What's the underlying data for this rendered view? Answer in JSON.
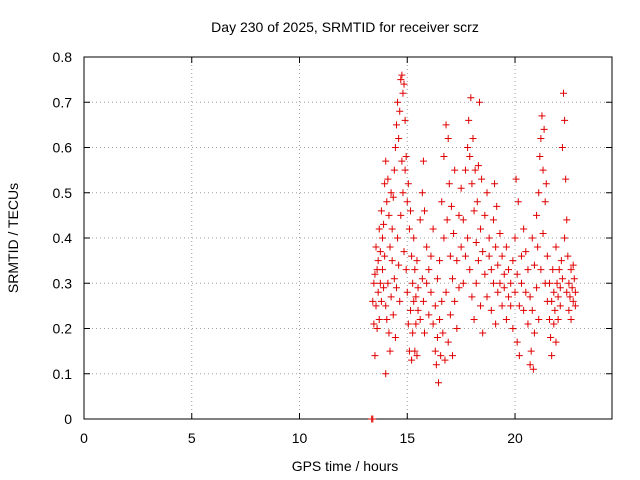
{
  "chart_data": {
    "type": "scatter",
    "title": "Day 230 of 2025, SRMTID for receiver scrz",
    "xlabel": "GPS time / hours",
    "ylabel": "SRMTID / TECUs",
    "xlim": [
      0,
      24.5
    ],
    "ylim": [
      0,
      0.8
    ],
    "x_ticks": [
      0,
      5,
      10,
      15,
      20
    ],
    "y_ticks": [
      0,
      0.1,
      0.2,
      0.3,
      0.4,
      0.5,
      0.6,
      0.7,
      0.8
    ],
    "x_tick_labels": [
      "0",
      "5",
      "10",
      "15",
      "20"
    ],
    "y_tick_labels": [
      "0",
      "0.1",
      "0.2",
      "0.3",
      "0.4",
      "0.5",
      "0.6",
      "0.7",
      "0.8"
    ],
    "grid": true,
    "marker": "plus",
    "color": "#e00000",
    "series": [
      {
        "name": "SRMTID",
        "points": [
          [
            13.35,
            0.0
          ],
          [
            13.4,
            0.0
          ],
          [
            13.4,
            0.26
          ],
          [
            13.45,
            0.21
          ],
          [
            13.45,
            0.3
          ],
          [
            13.5,
            0.14
          ],
          [
            13.5,
            0.32
          ],
          [
            13.55,
            0.25
          ],
          [
            13.55,
            0.38
          ],
          [
            13.6,
            0.2
          ],
          [
            13.6,
            0.33
          ],
          [
            13.65,
            0.28
          ],
          [
            13.65,
            0.35
          ],
          [
            13.7,
            0.22
          ],
          [
            13.7,
            0.42
          ],
          [
            13.75,
            0.3
          ],
          [
            13.75,
            0.37
          ],
          [
            13.8,
            0.26
          ],
          [
            13.8,
            0.46
          ],
          [
            13.85,
            0.33
          ],
          [
            13.85,
            0.4
          ],
          [
            13.9,
            0.43
          ],
          [
            13.9,
            0.29
          ],
          [
            13.95,
            0.52
          ],
          [
            13.95,
            0.36
          ],
          [
            14.0,
            0.57
          ],
          [
            14.0,
            0.25
          ],
          [
            14.0,
            0.1
          ],
          [
            14.05,
            0.48
          ],
          [
            14.05,
            0.22
          ],
          [
            14.1,
            0.53
          ],
          [
            14.1,
            0.3
          ],
          [
            14.15,
            0.45
          ],
          [
            14.15,
            0.19
          ],
          [
            14.2,
            0.38
          ],
          [
            14.2,
            0.15
          ],
          [
            14.25,
            0.5
          ],
          [
            14.25,
            0.27
          ],
          [
            14.3,
            0.35
          ],
          [
            14.3,
            0.42
          ],
          [
            14.35,
            0.49
          ],
          [
            14.35,
            0.23
          ],
          [
            14.4,
            0.31
          ],
          [
            14.4,
            0.55
          ],
          [
            14.45,
            0.6
          ],
          [
            14.45,
            0.18
          ],
          [
            14.5,
            0.65
          ],
          [
            14.5,
            0.29
          ],
          [
            14.55,
            0.7
          ],
          [
            14.55,
            0.4
          ],
          [
            14.6,
            0.62
          ],
          [
            14.6,
            0.34
          ],
          [
            14.65,
            0.68
          ],
          [
            14.65,
            0.26
          ],
          [
            14.7,
            0.75
          ],
          [
            14.7,
            0.45
          ],
          [
            14.75,
            0.76
          ],
          [
            14.75,
            0.57
          ],
          [
            14.8,
            0.72
          ],
          [
            14.8,
            0.5
          ],
          [
            14.85,
            0.74
          ],
          [
            14.85,
            0.37
          ],
          [
            14.9,
            0.66
          ],
          [
            14.9,
            0.55
          ],
          [
            14.95,
            0.58
          ],
          [
            14.95,
            0.33
          ],
          [
            15.0,
            0.48
          ],
          [
            15.0,
            0.28
          ],
          [
            15.05,
            0.52
          ],
          [
            15.05,
            0.21
          ],
          [
            15.1,
            0.42
          ],
          [
            15.1,
            0.15
          ],
          [
            15.15,
            0.46
          ],
          [
            15.15,
            0.24
          ],
          [
            15.2,
            0.36
          ],
          [
            15.2,
            0.13
          ],
          [
            15.25,
            0.3
          ],
          [
            15.25,
            0.19
          ],
          [
            15.3,
            0.4
          ],
          [
            15.3,
            0.26
          ],
          [
            15.35,
            0.33
          ],
          [
            15.35,
            0.15
          ],
          [
            15.4,
            0.27
          ],
          [
            15.4,
            0.21
          ],
          [
            15.45,
            0.35
          ],
          [
            15.45,
            0.14
          ],
          [
            15.5,
            0.29
          ],
          [
            15.5,
            0.24
          ],
          [
            15.6,
            0.44
          ],
          [
            15.6,
            0.22
          ],
          [
            15.7,
            0.5
          ],
          [
            15.7,
            0.31
          ],
          [
            15.75,
            0.57
          ],
          [
            15.75,
            0.26
          ],
          [
            15.8,
            0.46
          ],
          [
            15.8,
            0.19
          ],
          [
            15.9,
            0.38
          ],
          [
            15.9,
            0.3
          ],
          [
            16.0,
            0.33
          ],
          [
            16.0,
            0.23
          ],
          [
            16.1,
            0.28
          ],
          [
            16.1,
            0.36
          ],
          [
            16.2,
            0.42
          ],
          [
            16.2,
            0.21
          ],
          [
            16.3,
            0.25
          ],
          [
            16.3,
            0.15
          ],
          [
            16.35,
            0.12
          ],
          [
            16.4,
            0.18
          ],
          [
            16.4,
            0.31
          ],
          [
            16.45,
            0.08
          ],
          [
            16.5,
            0.22
          ],
          [
            16.5,
            0.35
          ],
          [
            16.55,
            0.14
          ],
          [
            16.6,
            0.26
          ],
          [
            16.6,
            0.48
          ],
          [
            16.65,
            0.19
          ],
          [
            16.7,
            0.4
          ],
          [
            16.7,
            0.58
          ],
          [
            16.75,
            0.13
          ],
          [
            16.8,
            0.28
          ],
          [
            16.8,
            0.65
          ],
          [
            16.85,
            0.44
          ],
          [
            16.9,
            0.62
          ],
          [
            16.9,
            0.17
          ],
          [
            16.95,
            0.52
          ],
          [
            17.0,
            0.36
          ],
          [
            17.0,
            0.23
          ],
          [
            17.05,
            0.47
          ],
          [
            17.1,
            0.31
          ],
          [
            17.1,
            0.14
          ],
          [
            17.15,
            0.41
          ],
          [
            17.2,
            0.26
          ],
          [
            17.2,
            0.55
          ],
          [
            17.3,
            0.35
          ],
          [
            17.3,
            0.2
          ],
          [
            17.4,
            0.45
          ],
          [
            17.4,
            0.29
          ],
          [
            17.5,
            0.51
          ],
          [
            17.5,
            0.38
          ],
          [
            17.6,
            0.3
          ],
          [
            17.6,
            0.44
          ],
          [
            17.7,
            0.36
          ],
          [
            17.7,
            0.55
          ],
          [
            17.8,
            0.6
          ],
          [
            17.8,
            0.4
          ],
          [
            17.85,
            0.66
          ],
          [
            17.9,
            0.58
          ],
          [
            17.9,
            0.33
          ],
          [
            17.95,
            0.71
          ],
          [
            18.0,
            0.52
          ],
          [
            18.0,
            0.27
          ],
          [
            18.05,
            0.62
          ],
          [
            18.1,
            0.46
          ],
          [
            18.1,
            0.22
          ],
          [
            18.15,
            0.55
          ],
          [
            18.2,
            0.39
          ],
          [
            18.2,
            0.3
          ],
          [
            18.25,
            0.48
          ],
          [
            18.3,
            0.35
          ],
          [
            18.3,
            0.56
          ],
          [
            18.35,
            0.7
          ],
          [
            18.4,
            0.42
          ],
          [
            18.4,
            0.25
          ],
          [
            18.45,
            0.53
          ],
          [
            18.5,
            0.37
          ],
          [
            18.5,
            0.19
          ],
          [
            18.6,
            0.45
          ],
          [
            18.6,
            0.32
          ],
          [
            18.7,
            0.5
          ],
          [
            18.7,
            0.27
          ],
          [
            18.8,
            0.4
          ],
          [
            18.8,
            0.36
          ],
          [
            18.9,
            0.33
          ],
          [
            18.9,
            0.24
          ],
          [
            19.0,
            0.44
          ],
          [
            19.0,
            0.3
          ],
          [
            19.05,
            0.52
          ],
          [
            19.1,
            0.38
          ],
          [
            19.1,
            0.21
          ],
          [
            19.15,
            0.47
          ],
          [
            19.2,
            0.34
          ],
          [
            19.2,
            0.28
          ],
          [
            19.3,
            0.41
          ],
          [
            19.3,
            0.3
          ],
          [
            19.4,
            0.36
          ],
          [
            19.4,
            0.25
          ],
          [
            19.5,
            0.32
          ],
          [
            19.5,
            0.29
          ],
          [
            19.6,
            0.38
          ],
          [
            19.6,
            0.22
          ],
          [
            19.7,
            0.33
          ],
          [
            19.7,
            0.27
          ],
          [
            19.8,
            0.3
          ],
          [
            19.8,
            0.25
          ],
          [
            19.9,
            0.35
          ],
          [
            19.9,
            0.2
          ],
          [
            20.0,
            0.28
          ],
          [
            20.0,
            0.4
          ],
          [
            20.05,
            0.53
          ],
          [
            20.1,
            0.17
          ],
          [
            20.1,
            0.32
          ],
          [
            20.15,
            0.48
          ],
          [
            20.2,
            0.25
          ],
          [
            20.2,
            0.14
          ],
          [
            20.3,
            0.36
          ],
          [
            20.3,
            0.3
          ],
          [
            20.4,
            0.42
          ],
          [
            20.4,
            0.24
          ],
          [
            20.5,
            0.28
          ],
          [
            20.5,
            0.37
          ],
          [
            20.6,
            0.33
          ],
          [
            20.6,
            0.21
          ],
          [
            20.7,
            0.27
          ],
          [
            20.7,
            0.12
          ],
          [
            20.75,
            0.15
          ],
          [
            20.8,
            0.4
          ],
          [
            20.8,
            0.24
          ],
          [
            20.85,
            0.11
          ],
          [
            20.9,
            0.34
          ],
          [
            20.9,
            0.19
          ],
          [
            21.0,
            0.29
          ],
          [
            21.0,
            0.45
          ],
          [
            21.05,
            0.38
          ],
          [
            21.1,
            0.22
          ],
          [
            21.1,
            0.5
          ],
          [
            21.15,
            0.58
          ],
          [
            21.2,
            0.33
          ],
          [
            21.2,
            0.62
          ],
          [
            21.25,
            0.67
          ],
          [
            21.3,
            0.41
          ],
          [
            21.3,
            0.55
          ],
          [
            21.35,
            0.64
          ],
          [
            21.4,
            0.48
          ],
          [
            21.4,
            0.3
          ],
          [
            21.45,
            0.52
          ],
          [
            21.5,
            0.36
          ],
          [
            21.5,
            0.26
          ],
          [
            21.6,
            0.3
          ],
          [
            21.6,
            0.22
          ],
          [
            21.65,
            0.18
          ],
          [
            21.7,
            0.26
          ],
          [
            21.7,
            0.14
          ],
          [
            21.75,
            0.33
          ],
          [
            21.8,
            0.21
          ],
          [
            21.8,
            0.28
          ],
          [
            21.85,
            0.24
          ],
          [
            21.9,
            0.38
          ],
          [
            21.9,
            0.17
          ],
          [
            21.95,
            0.3
          ],
          [
            22.0,
            0.27
          ],
          [
            22.0,
            0.22
          ],
          [
            22.05,
            0.33
          ],
          [
            22.1,
            0.29
          ],
          [
            22.1,
            0.25
          ],
          [
            22.15,
            0.35
          ],
          [
            22.2,
            0.31
          ],
          [
            22.2,
            0.6
          ],
          [
            22.25,
            0.72
          ],
          [
            22.3,
            0.66
          ],
          [
            22.3,
            0.4
          ],
          [
            22.35,
            0.53
          ],
          [
            22.4,
            0.44
          ],
          [
            22.4,
            0.28
          ],
          [
            22.45,
            0.36
          ],
          [
            22.5,
            0.3
          ],
          [
            22.5,
            0.24
          ],
          [
            22.55,
            0.27
          ],
          [
            22.6,
            0.33
          ],
          [
            22.6,
            0.22
          ],
          [
            22.65,
            0.29
          ],
          [
            22.7,
            0.26
          ],
          [
            22.7,
            0.34
          ],
          [
            22.75,
            0.31
          ],
          [
            22.8,
            0.28
          ],
          [
            22.8,
            0.25
          ]
        ]
      }
    ]
  }
}
